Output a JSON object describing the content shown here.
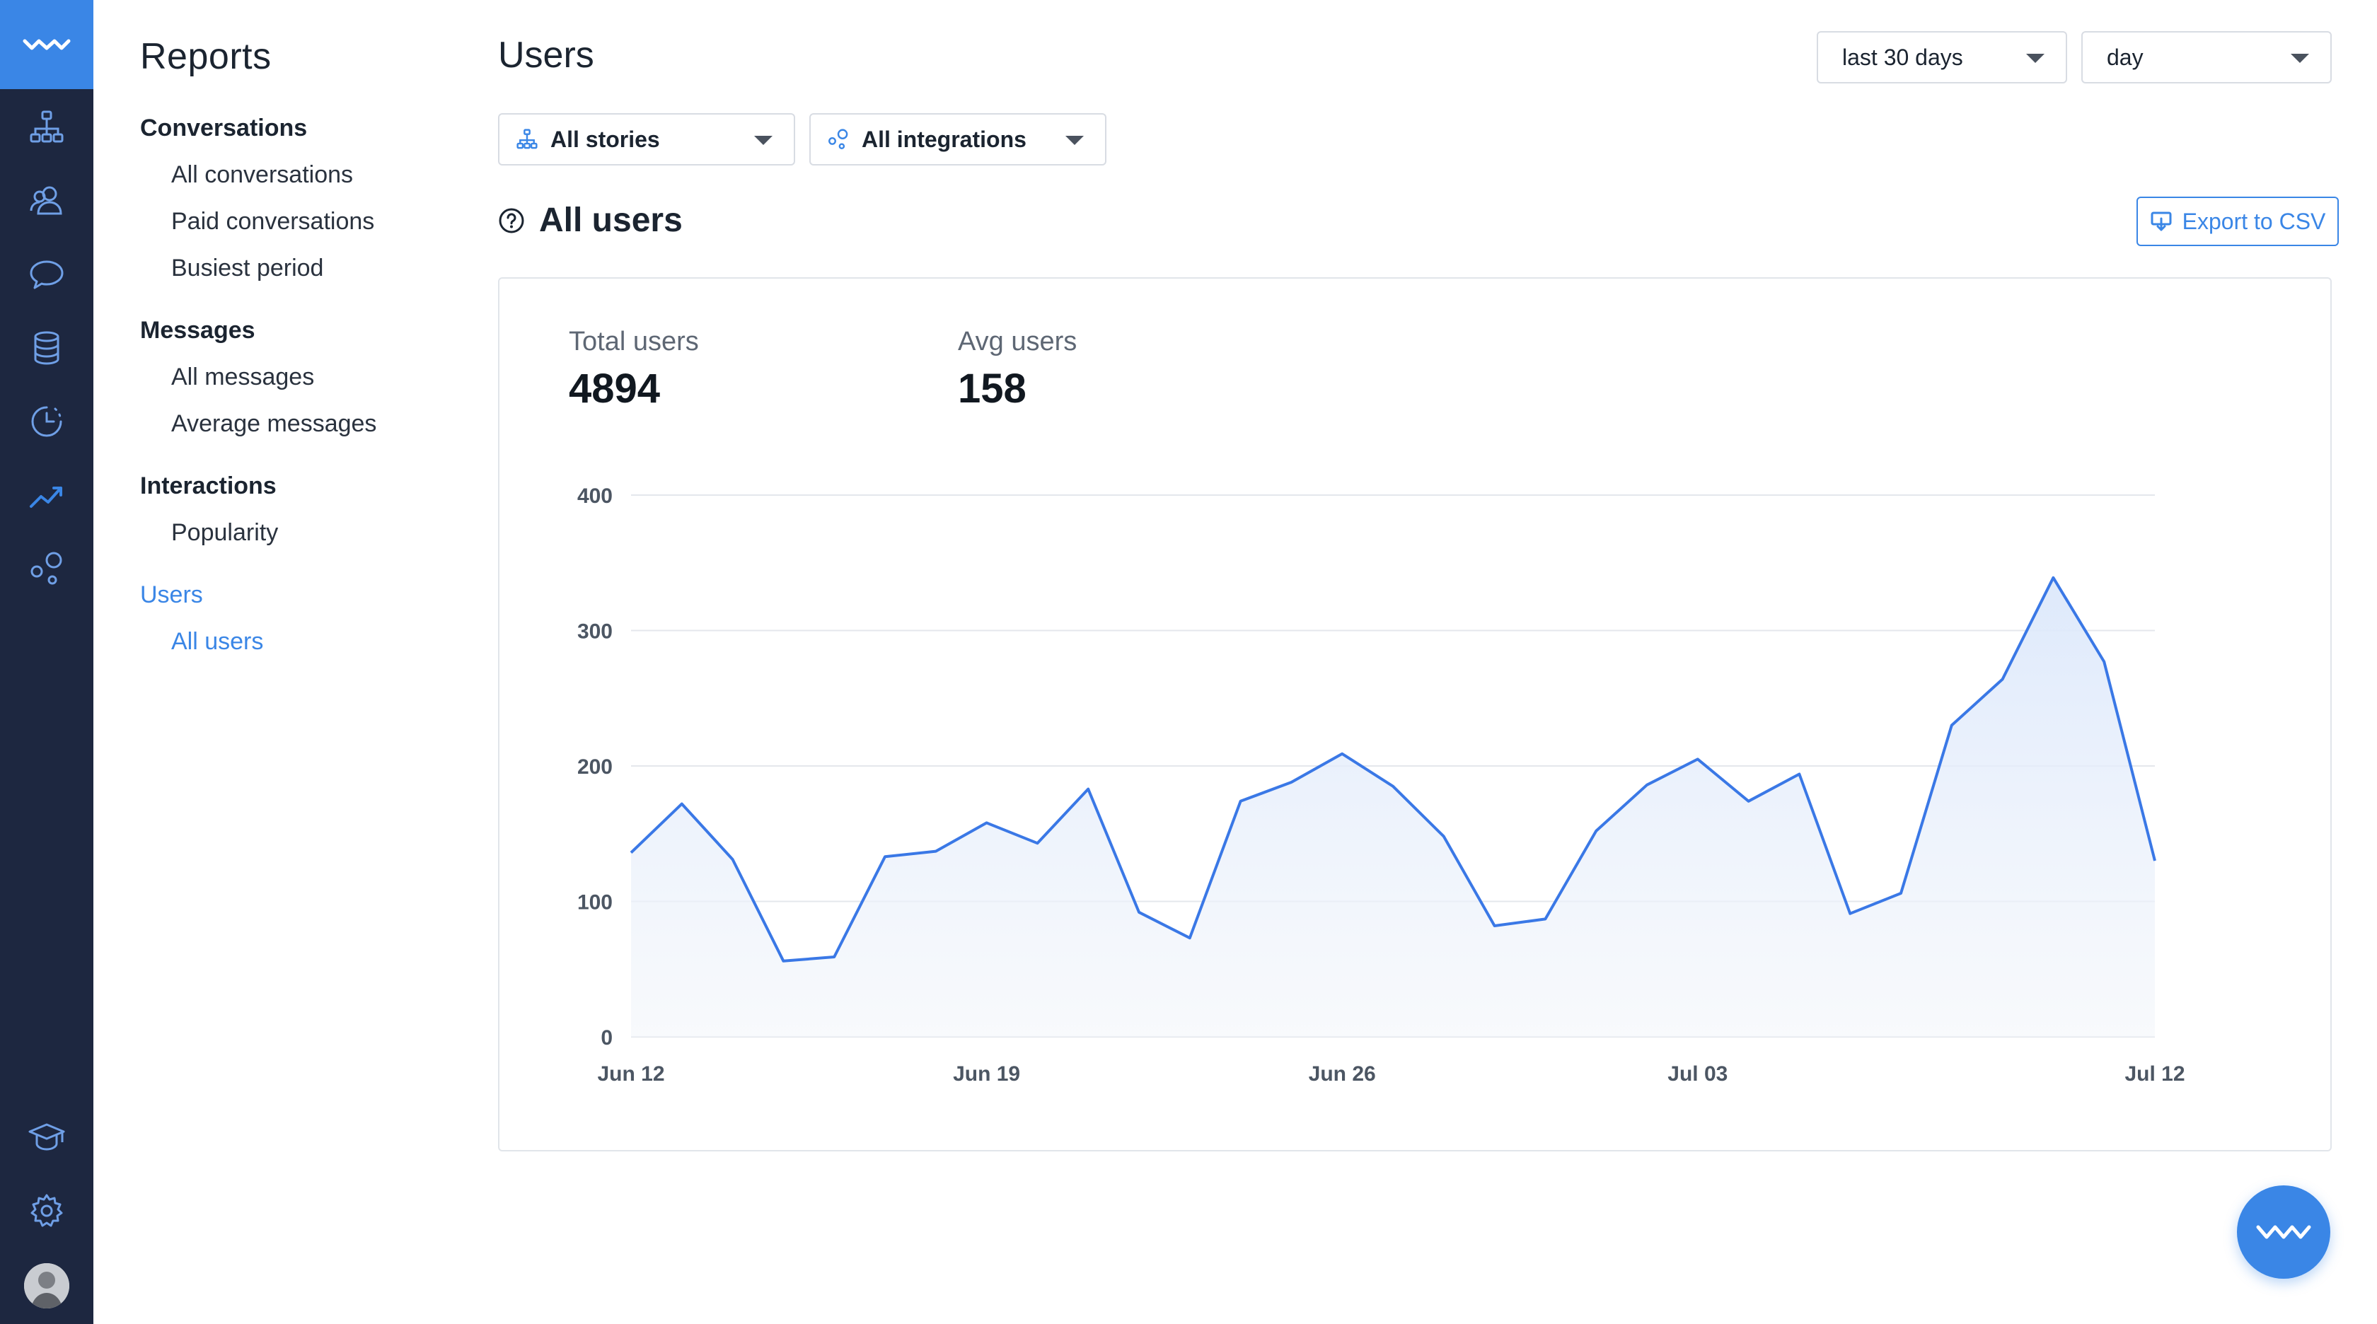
{
  "sidebar": {
    "icons": [
      "wave-logo-icon",
      "stories-icon",
      "users-icon",
      "chat-icon",
      "database-icon",
      "history-icon",
      "reports-icon",
      "integrations-icon",
      "academy-icon",
      "settings-icon",
      "avatar"
    ]
  },
  "subnav": {
    "title": "Reports",
    "sections": [
      {
        "heading": "Conversations",
        "items": [
          "All conversations",
          "Paid conversations",
          "Busiest period"
        ]
      },
      {
        "heading": "Messages",
        "items": [
          "All messages",
          "Average messages"
        ]
      },
      {
        "heading": "Interactions",
        "items": [
          "Popularity"
        ]
      },
      {
        "heading": "Users",
        "items": [
          "All users"
        ]
      }
    ],
    "active_section": "Users",
    "active_item": "All users"
  },
  "header": {
    "title": "Users",
    "range_select": "last 30 days",
    "granularity_select": "day",
    "stories_filter": "All stories",
    "integrations_filter": "All integrations"
  },
  "section": {
    "title": "All users",
    "export_label": "Export to CSV"
  },
  "stats": {
    "total_label": "Total users",
    "total_value": "4894",
    "avg_label": "Avg users",
    "avg_value": "158"
  },
  "colors": {
    "accent": "#3a86e6",
    "rail_bg": "#1d2740",
    "line": "#3a78e6"
  },
  "chart_data": {
    "type": "area",
    "x": [
      "Jun 12",
      "Jun 13",
      "Jun 14",
      "Jun 15",
      "Jun 16",
      "Jun 17",
      "Jun 18",
      "Jun 19",
      "Jun 20",
      "Jun 21",
      "Jun 22",
      "Jun 23",
      "Jun 24",
      "Jun 25",
      "Jun 26",
      "Jun 27",
      "Jun 28",
      "Jun 29",
      "Jun 30",
      "Jul 01",
      "Jul 02",
      "Jul 03",
      "Jul 04",
      "Jul 05",
      "Jul 06",
      "Jul 07",
      "Jul 08",
      "Jul 09",
      "Jul 10",
      "Jul 11",
      "Jul 12"
    ],
    "series": [
      {
        "values": [
          136,
          172,
          131,
          56,
          59,
          133,
          137,
          158,
          143,
          183,
          92,
          73,
          174,
          188,
          209,
          185,
          148,
          82,
          87,
          152,
          186,
          205,
          174,
          194,
          91,
          106,
          230,
          264,
          339,
          277,
          130
        ]
      }
    ],
    "xticks": [
      "Jun 12",
      "Jun 19",
      "Jun 26",
      "Jul 03",
      "Jul 12"
    ],
    "yticks": [
      "0",
      "100",
      "200",
      "300",
      "400"
    ],
    "ylim": [
      0,
      400
    ],
    "grid": true,
    "title": "",
    "xlabel": "",
    "ylabel": ""
  }
}
